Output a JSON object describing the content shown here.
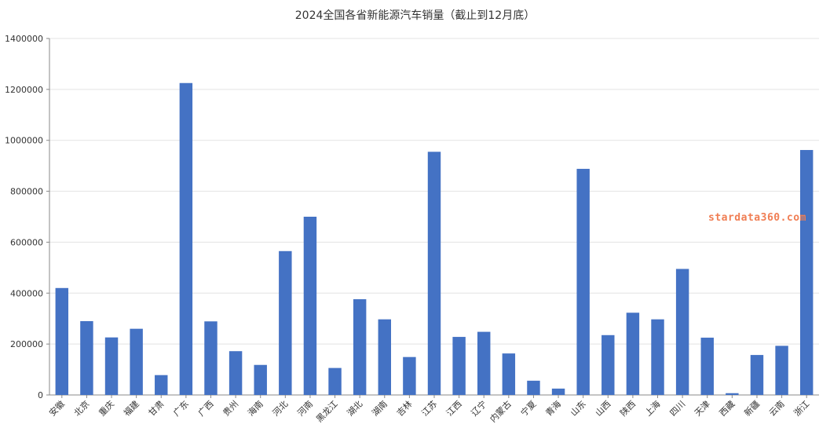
{
  "chart_data": {
    "type": "bar",
    "title": "2024全国各省新能源汽车销量（截止到12月底）",
    "categories": [
      "安徽",
      "北京",
      "重庆",
      "福建",
      "甘肃",
      "广东",
      "广西",
      "贵州",
      "海南",
      "河北",
      "河南",
      "黑龙江",
      "湖北",
      "湖南",
      "吉林",
      "江苏",
      "江西",
      "辽宁",
      "内蒙古",
      "宁夏",
      "青海",
      "山东",
      "山西",
      "陕西",
      "上海",
      "四川",
      "天津",
      "西藏",
      "新疆",
      "云南",
      "浙江"
    ],
    "values": [
      420000,
      290000,
      226000,
      260000,
      78000,
      1225000,
      289000,
      172000,
      118000,
      565000,
      700000,
      106000,
      376000,
      297000,
      149000,
      955000,
      228000,
      248000,
      163000,
      56000,
      25000,
      888000,
      235000,
      323000,
      297000,
      495000,
      225000,
      7000,
      157000,
      193000,
      962000
    ],
    "yticks": [
      "0",
      "200000",
      "400000",
      "600000",
      "800000",
      "1000000",
      "1200000",
      "1400000"
    ],
    "ylim": [
      0,
      1400000
    ],
    "xlabel": "",
    "ylabel": "",
    "grid": true,
    "bar_color": "#4472c4"
  },
  "watermark": {
    "text": "stardata360.com",
    "color": "#f07e54"
  }
}
